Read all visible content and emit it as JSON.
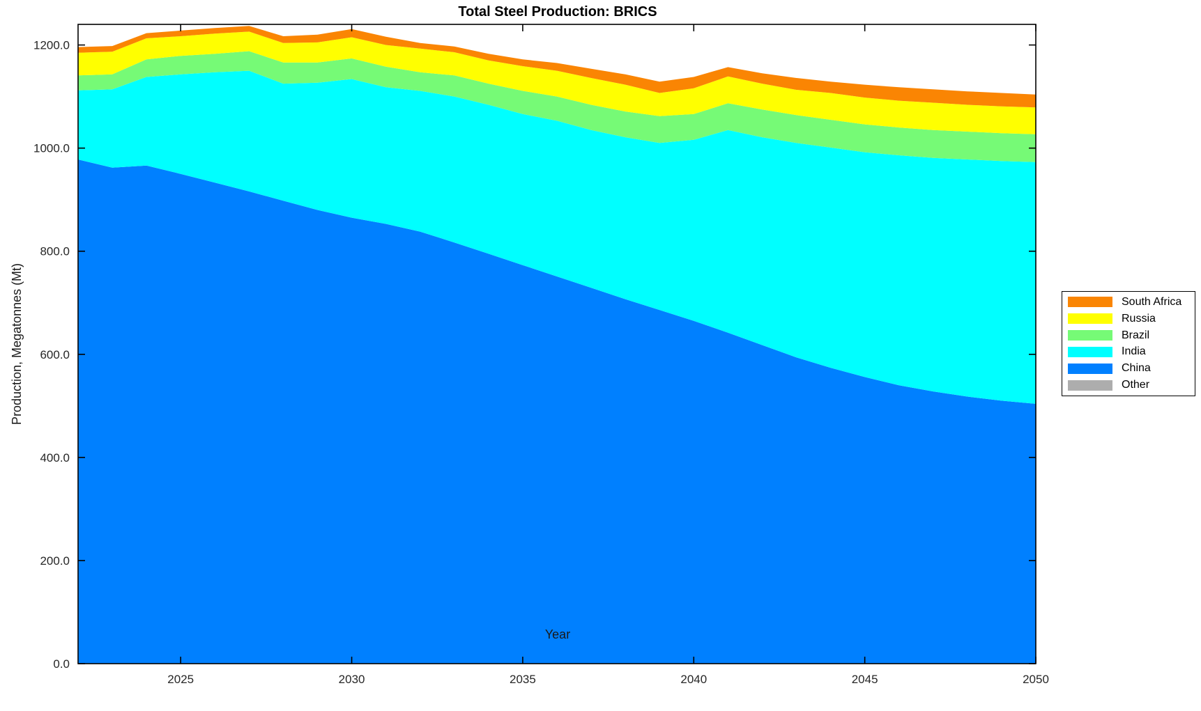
{
  "chart_data": {
    "type": "area",
    "stacked": true,
    "title": "Total Steel Production: BRICS",
    "xlabel": "Year",
    "ylabel": "Production, Megatonnes (Mt)",
    "xlim": [
      2022,
      2050
    ],
    "ylim": [
      0,
      1240
    ],
    "grid": false,
    "frame": "box-with-inward-ticks",
    "axis_color": "#000000",
    "tick_label_color": "#262626",
    "x": [
      2022,
      2023,
      2024,
      2025,
      2026,
      2027,
      2028,
      2029,
      2030,
      2031,
      2032,
      2033,
      2034,
      2035,
      2036,
      2037,
      2038,
      2039,
      2040,
      2041,
      2042,
      2043,
      2044,
      2045,
      2046,
      2047,
      2048,
      2049,
      2050
    ],
    "x_ticks": [
      {
        "value": 2025,
        "label": "2025"
      },
      {
        "value": 2030,
        "label": "2030"
      },
      {
        "value": 2035,
        "label": "2035"
      },
      {
        "value": 2040,
        "label": "2040"
      },
      {
        "value": 2045,
        "label": "2045"
      },
      {
        "value": 2050,
        "label": "2050"
      }
    ],
    "y_ticks": [
      {
        "value": 0,
        "label": "0.0"
      },
      {
        "value": 200,
        "label": "200.0"
      },
      {
        "value": 400,
        "label": "400.0"
      },
      {
        "value": 600,
        "label": "600.0"
      },
      {
        "value": 800,
        "label": "800.0"
      },
      {
        "value": 1000,
        "label": "1000.0"
      },
      {
        "value": 1200,
        "label": "1200.0"
      }
    ],
    "stack_order_bottom_to_top": [
      "Other",
      "China",
      "India",
      "Brazil",
      "Russia",
      "South Africa"
    ],
    "legend": {
      "position": "outside-right",
      "order_top_to_bottom": [
        "South Africa",
        "Russia",
        "Brazil",
        "India",
        "China",
        "Other"
      ]
    },
    "series": [
      {
        "name": "South Africa",
        "color": "#FA8503",
        "values": [
          11,
          11,
          10,
          11,
          11,
          11,
          13,
          15,
          16,
          16,
          11,
          11,
          13,
          13,
          15,
          18,
          20,
          22,
          22,
          18,
          20,
          23,
          22,
          25,
          26,
          26,
          26,
          26,
          25
        ]
      },
      {
        "name": "Russia",
        "color": "#FFFF00",
        "values": [
          44,
          44,
          41,
          38,
          39,
          38,
          38,
          39,
          41,
          42,
          46,
          45,
          45,
          48,
          50,
          52,
          52,
          45,
          50,
          52,
          50,
          49,
          52,
          52,
          52,
          53,
          52,
          52,
          52
        ]
      },
      {
        "name": "Brazil",
        "color": "#76FA76",
        "values": [
          29,
          29,
          34,
          36,
          36,
          38,
          41,
          39,
          40,
          40,
          36,
          41,
          41,
          45,
          47,
          49,
          50,
          52,
          50,
          52,
          54,
          54,
          54,
          54,
          54,
          54,
          54,
          54,
          54
        ]
      },
      {
        "name": "India",
        "color": "#00FFFF",
        "values": [
          134,
          152,
          172,
          193,
          214,
          234,
          227,
          247,
          269,
          265,
          273,
          283,
          289,
          293,
          302,
          306,
          314,
          324,
          351,
          393,
          403,
          416,
          427,
          436,
          446,
          453,
          460,
          465,
          469
        ]
      },
      {
        "name": "China",
        "color": "#0080FF",
        "values": [
          978,
          962,
          966,
          950,
          933,
          916,
          898,
          880,
          865,
          853,
          838,
          817,
          795,
          773,
          751,
          729,
          707,
          686,
          665,
          642,
          618,
          594,
          574,
          556,
          540,
          528,
          518,
          510,
          504
        ]
      },
      {
        "name": "Other",
        "color": "#ADADAD",
        "values": [
          0,
          0,
          0,
          0,
          0,
          0,
          0,
          0,
          0,
          0,
          0,
          0,
          0,
          0,
          0,
          0,
          0,
          0,
          0,
          0,
          0,
          0,
          0,
          0,
          0,
          0,
          0,
          0,
          0
        ]
      }
    ]
  }
}
